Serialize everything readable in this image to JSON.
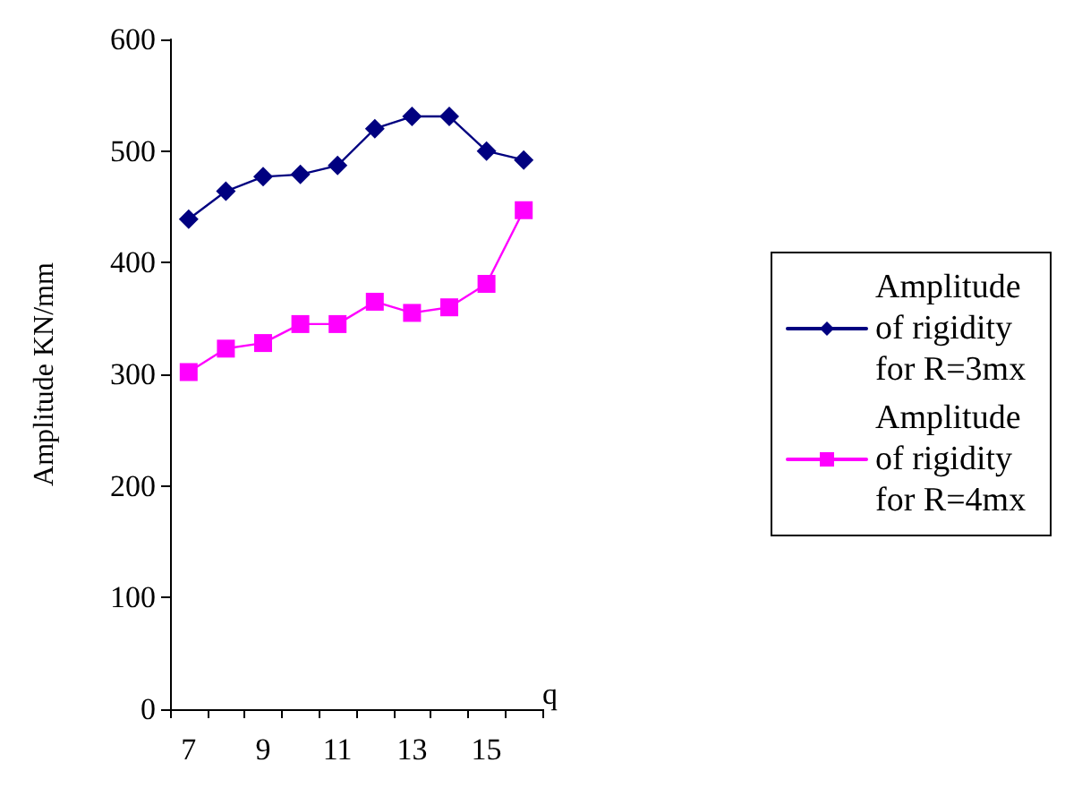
{
  "chart_data": {
    "type": "line",
    "xlabel": "q",
    "ylabel": "Amplitude KN/mm",
    "categories": [
      "7",
      null,
      "9",
      null,
      "11",
      null,
      "13",
      null,
      "15",
      null
    ],
    "series": [
      {
        "name": "Amplitude of rigidity for R=3mx",
        "color": "#000080",
        "marker": "diamond",
        "values": [
          439,
          464,
          477,
          479,
          487,
          520,
          531,
          531,
          500,
          492
        ]
      },
      {
        "name": "Amplitude of rigidity for R=4mx",
        "color": "#ff00ff",
        "marker": "square",
        "values": [
          302,
          323,
          328,
          345,
          345,
          365,
          355,
          360,
          381,
          447
        ]
      }
    ],
    "ylim": [
      0,
      600
    ],
    "yticks": [
      0,
      100,
      200,
      300,
      400,
      500,
      600
    ],
    "grid": false,
    "legend": "right",
    "line_style": "solid"
  }
}
